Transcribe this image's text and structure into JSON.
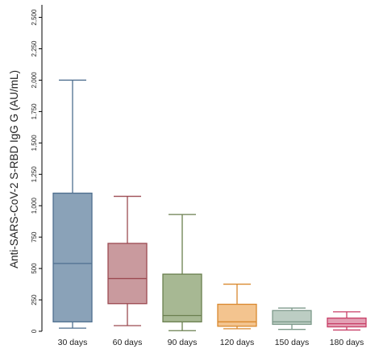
{
  "chart_data": {
    "type": "boxplot",
    "title": "",
    "xlabel": "",
    "ylabel": "Anti-SARS-CoV-2 S-RBD IgG G (AU/mL)",
    "ylim": [
      0,
      2600
    ],
    "yticks": [
      0,
      250,
      500,
      750,
      1000,
      1250,
      1500,
      1750,
      2000,
      2250,
      2500
    ],
    "ytick_labels": [
      "0",
      "250",
      "500",
      "750",
      "1,000",
      "1,250",
      "1,500",
      "1,750",
      "2,000",
      "2,250",
      "2,500"
    ],
    "grid": false,
    "categories": [
      "30 days",
      "60 days",
      "90 days",
      "120 days",
      "150 days",
      "180 days"
    ],
    "boxes": [
      {
        "label": "30 days",
        "whisker_low": 25,
        "q1": 75,
        "median": 540,
        "q3": 1100,
        "whisker_high": 2000,
        "fill": "#8aa2b8",
        "stroke": "#4f6f8f"
      },
      {
        "label": "60 days",
        "whisker_low": 45,
        "q1": 220,
        "median": 420,
        "q3": 700,
        "whisker_high": 1075,
        "fill": "#c99a9e",
        "stroke": "#9c4a52"
      },
      {
        "label": "90 days",
        "whisker_low": 5,
        "q1": 75,
        "median": 125,
        "q3": 455,
        "whisker_high": 930,
        "fill": "#a7b893",
        "stroke": "#6a7f4f"
      },
      {
        "label": "120 days",
        "whisker_low": 20,
        "q1": 40,
        "median": 75,
        "q3": 215,
        "whisker_high": 375,
        "fill": "#f3c48f",
        "stroke": "#d9892f"
      },
      {
        "label": "150 days",
        "whisker_low": 15,
        "q1": 55,
        "median": 75,
        "q3": 165,
        "whisker_high": 185,
        "fill": "#bccdc3",
        "stroke": "#7e9a8b"
      },
      {
        "label": "180 days",
        "whisker_low": 10,
        "q1": 35,
        "median": 60,
        "q3": 105,
        "whisker_high": 155,
        "fill": "#e3a0b4",
        "stroke": "#c83f67"
      }
    ]
  }
}
